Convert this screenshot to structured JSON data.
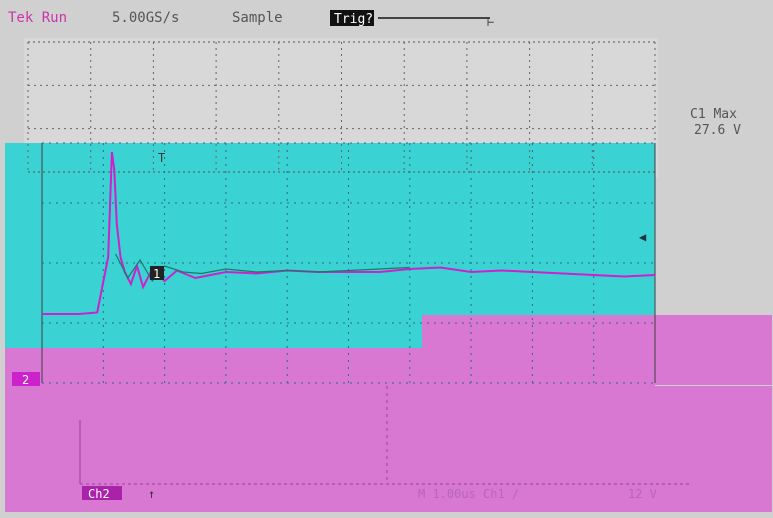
{
  "colors": {
    "frame_bg": "#d0d0d0",
    "ch1_fill": "#3ad2d2",
    "ch2_fill": "#d878d2",
    "ch2_trace": "#cc22cc",
    "ch1_trace": "#1a7a6a",
    "grid_dark": "#404040",
    "ch1_marker": "#cc22cc",
    "ch2_marker": "#cc22cc"
  },
  "status_bar": {
    "run_state": "Tek Run",
    "sample_rate": "5.00GS/s",
    "acq_mode": "Sample",
    "trigger_label": "Trig?"
  },
  "measurements": {
    "ch1_max_label": "C1 Max",
    "ch1_max_value": "27.6 V"
  },
  "readout_bar": {
    "ch2_label": "Ch2",
    "trigger_icon": "trigger-edge-icon",
    "center_text": "M 1.00us Ch1 /",
    "right_text": "12 V"
  },
  "markers": {
    "ch1": "1",
    "ch2": "2",
    "trigger_pos": "T"
  },
  "chart_data": {
    "type": "line",
    "series": [
      {
        "x": [
          0,
          0.3,
          0.6,
          0.9,
          1.08,
          1.14,
          1.18,
          1.22,
          1.28,
          1.35,
          1.45,
          1.55,
          1.65,
          1.8,
          2.0,
          2.2,
          2.5,
          3.0,
          3.5,
          4.0,
          4.5,
          5.0,
          5.5,
          6.0,
          6.5,
          7.0,
          7.5,
          8.0,
          8.5,
          9.0,
          9.5,
          10.0
        ],
        "values": [
          -1.7,
          -1.7,
          -1.7,
          -1.65,
          0.2,
          3.7,
          3.1,
          1.3,
          0.2,
          -0.3,
          -0.7,
          -0.1,
          -0.8,
          -0.2,
          -0.6,
          -0.25,
          -0.5,
          -0.3,
          -0.35,
          -0.25,
          -0.3,
          -0.3,
          -0.3,
          -0.2,
          -0.15,
          -0.3,
          -0.25,
          -0.3,
          -0.35,
          -0.4,
          -0.45,
          -0.4
        ]
      },
      {
        "x": [
          1.2,
          1.4,
          1.6,
          1.8,
          2.0,
          2.3,
          2.6,
          3.0,
          3.5,
          4.0,
          4.5,
          5.0,
          5.5,
          6.0
        ],
        "values": [
          0.3,
          -0.5,
          0.1,
          -0.6,
          -0.1,
          -0.3,
          -0.35,
          -0.2,
          -0.3,
          -0.25,
          -0.3,
          -0.25,
          -0.2,
          -0.15
        ]
      }
    ],
    "xlim": [
      0,
      10
    ],
    "ylim": [
      -4,
      4
    ],
    "grid": true
  }
}
